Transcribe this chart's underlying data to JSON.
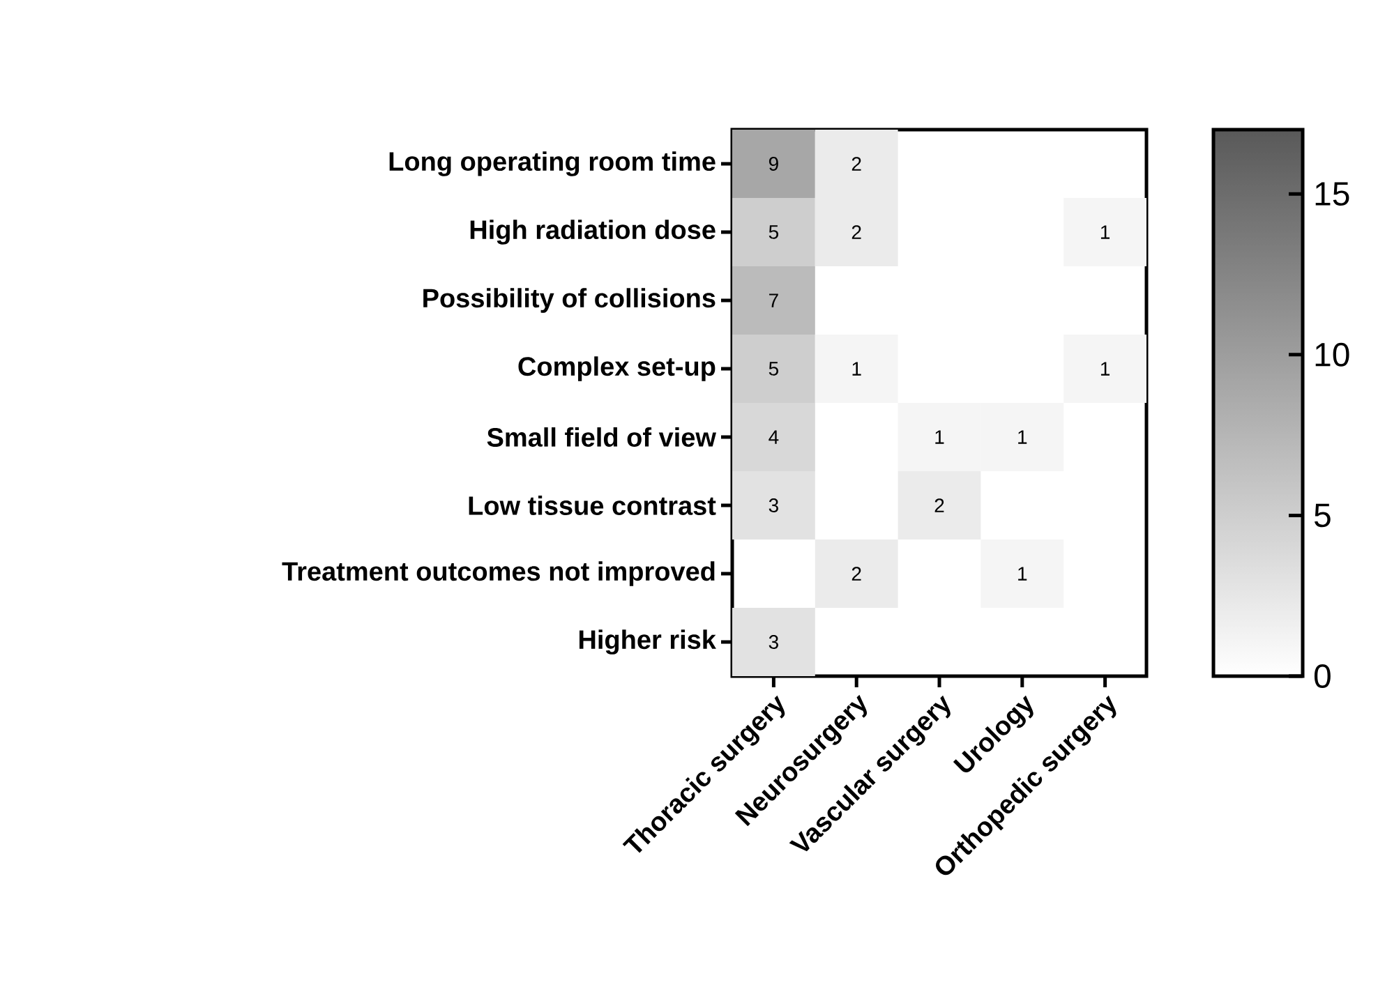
{
  "chart_data": {
    "type": "heatmap",
    "categories": [
      "Thoracic surgery",
      "Neurosurgery",
      "Vascular surgery",
      "Urology",
      "Orthopedic surgery"
    ],
    "y_categories": [
      "Long operating room time",
      "High radiation dose",
      "Possibility of collisions",
      "Complex set-up",
      "Small field of view",
      "Low tissue contrast",
      "Treatment outcomes not improved",
      "Higher risk"
    ],
    "cells": [
      [
        9,
        2,
        null,
        null,
        null
      ],
      [
        5,
        2,
        null,
        null,
        1
      ],
      [
        7,
        null,
        null,
        null,
        null
      ],
      [
        5,
        1,
        null,
        null,
        1
      ],
      [
        4,
        null,
        1,
        1,
        null
      ],
      [
        3,
        null,
        2,
        null,
        null
      ],
      [
        null,
        2,
        null,
        1,
        null
      ],
      [
        3,
        null,
        null,
        null,
        null
      ]
    ],
    "data_labels": true,
    "clim": [
      0,
      17
    ],
    "cticks": [
      0,
      5,
      10,
      15
    ],
    "colors": [
      "#ffffff",
      "#595959"
    ]
  }
}
